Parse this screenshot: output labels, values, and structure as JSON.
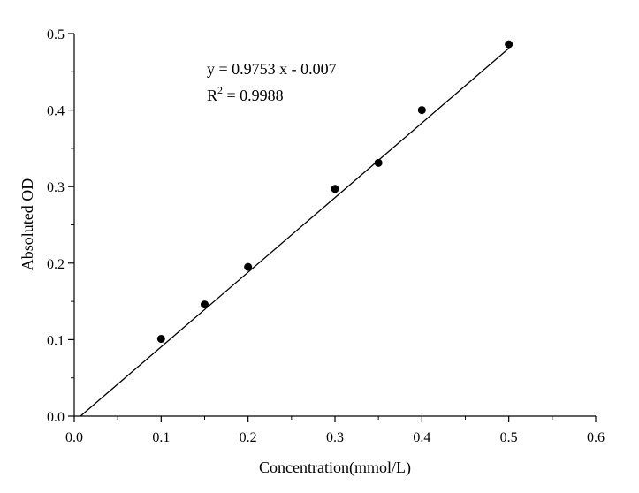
{
  "chart_data": {
    "type": "scatter",
    "title": "",
    "xlabel": "Concentration(mmol/L)",
    "ylabel": "Absoluted OD",
    "xlim": [
      0.0,
      0.6
    ],
    "ylim": [
      0.0,
      0.5
    ],
    "x_ticks": [
      "0.0",
      "0.1",
      "0.2",
      "0.3",
      "0.4",
      "0.5",
      "0.6"
    ],
    "y_ticks": [
      "0.0",
      "0.1",
      "0.2",
      "0.3",
      "0.4",
      "0.5"
    ],
    "x_tick_values": [
      0.0,
      0.1,
      0.2,
      0.3,
      0.4,
      0.5,
      0.6
    ],
    "y_tick_values": [
      0.0,
      0.1,
      0.2,
      0.3,
      0.4,
      0.5
    ],
    "series": [
      {
        "name": "data",
        "points": [
          {
            "x": 0.1,
            "y": 0.101
          },
          {
            "x": 0.15,
            "y": 0.146
          },
          {
            "x": 0.2,
            "y": 0.195
          },
          {
            "x": 0.3,
            "y": 0.297
          },
          {
            "x": 0.35,
            "y": 0.331
          },
          {
            "x": 0.4,
            "y": 0.4
          },
          {
            "x": 0.5,
            "y": 0.486
          }
        ]
      }
    ],
    "fit": {
      "slope": 0.9753,
      "intercept": -0.007,
      "x_range": [
        0.0,
        0.5
      ],
      "equation": "y = 0.9753 x - 0.007",
      "r2_prefix": "R",
      "r2_superscript": "2",
      "r2_value": " = 0.9988"
    },
    "grid": false,
    "legend": "none"
  }
}
